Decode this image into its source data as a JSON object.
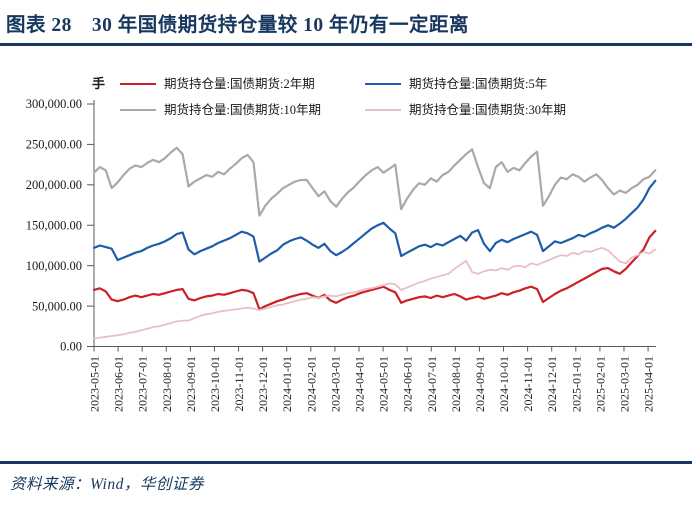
{
  "header": {
    "title": "图表 28　30 年国债期货持仓量较 10 年仍有一定距离"
  },
  "footer": {
    "source": "资料来源：Wind，华创证券"
  },
  "colors": {
    "accent_navy": "#17375e",
    "axis": "#595959",
    "text": "#1a1a1a"
  },
  "chart_data": {
    "type": "line",
    "title": "30 年国债期货持仓量较 10 年仍有一定距离",
    "unit": "手",
    "legend_position": "top",
    "grid": false,
    "ylim": [
      0,
      300000
    ],
    "y_tick_labels": [
      "0.00",
      "50,000.00",
      "100,000.00",
      "150,000.00",
      "200,000.00",
      "250,000.00",
      "300,000.00"
    ],
    "x_tick_labels": [
      "2023-05-01",
      "2023-06-01",
      "2023-07-01",
      "2023-08-01",
      "2023-09-01",
      "2023-10-01",
      "2023-11-01",
      "2023-12-01",
      "2024-01-01",
      "2024-02-01",
      "2024-03-01",
      "2024-04-01",
      "2024-05-01",
      "2024-06-01",
      "2024-07-01",
      "2024-08-01",
      "2024-09-01",
      "2024-10-01",
      "2024-11-01",
      "2024-12-01",
      "2025-01-01",
      "2025-02-01",
      "2025-03-01",
      "2025-04-01"
    ],
    "x_start": "2023-05-01",
    "x_end": "2025-04-15",
    "sampling": "approx. weekly (4 points per month), values estimated from plot",
    "values_scale": 1000,
    "values_note": "multiply each value by values_scale to get open interest in 手 (lots)",
    "series": [
      {
        "name": "期货持仓量:国债期货:2年期",
        "color": "#cc2027",
        "width": 2.2,
        "values": [
          70,
          72,
          68,
          58,
          56,
          58,
          61,
          63,
          61,
          63,
          65,
          64,
          66,
          68,
          70,
          71,
          59,
          57,
          60,
          62,
          63,
          65,
          64,
          66,
          68,
          70,
          69,
          66,
          46,
          50,
          53,
          56,
          58,
          61,
          63,
          65,
          66,
          63,
          60,
          64,
          57,
          54,
          58,
          61,
          63,
          66,
          68,
          70,
          72,
          74,
          70,
          67,
          54,
          57,
          59,
          61,
          62,
          60,
          63,
          61,
          63,
          65,
          62,
          58,
          60,
          62,
          59,
          61,
          63,
          66,
          64,
          67,
          69,
          72,
          74,
          71,
          55,
          60,
          65,
          69,
          72,
          76,
          80,
          84,
          88,
          92,
          96,
          97,
          93,
          90,
          96,
          104,
          112,
          120,
          135,
          143
        ]
      },
      {
        "name": "期货持仓量:国债期货:5年",
        "color": "#1f5ca9",
        "width": 2.2,
        "values": [
          122,
          125,
          123,
          121,
          107,
          110,
          113,
          116,
          118,
          122,
          125,
          127,
          130,
          134,
          139,
          141,
          120,
          114,
          118,
          121,
          124,
          128,
          131,
          134,
          138,
          142,
          140,
          136,
          105,
          110,
          115,
          119,
          126,
          130,
          133,
          135,
          131,
          126,
          122,
          127,
          118,
          113,
          117,
          122,
          128,
          134,
          140,
          146,
          150,
          153,
          146,
          140,
          112,
          116,
          120,
          124,
          126,
          123,
          127,
          125,
          129,
          133,
          137,
          131,
          141,
          144,
          127,
          118,
          128,
          132,
          129,
          133,
          136,
          139,
          142,
          138,
          118,
          124,
          130,
          128,
          131,
          134,
          138,
          136,
          140,
          143,
          147,
          150,
          147,
          152,
          158,
          165,
          172,
          182,
          196,
          205
        ]
      },
      {
        "name": "期货持仓量:国债期货:10年期",
        "color": "#a9a9a9",
        "width": 2.2,
        "values": [
          215,
          222,
          218,
          196,
          203,
          212,
          220,
          224,
          222,
          227,
          231,
          228,
          233,
          240,
          246,
          238,
          198,
          204,
          208,
          212,
          210,
          216,
          213,
          220,
          226,
          233,
          237,
          228,
          162,
          174,
          183,
          189,
          196,
          200,
          204,
          206,
          206,
          196,
          186,
          192,
          180,
          173,
          183,
          191,
          197,
          205,
          212,
          218,
          222,
          215,
          220,
          225,
          170,
          183,
          194,
          202,
          200,
          208,
          204,
          212,
          216,
          224,
          231,
          238,
          244,
          222,
          202,
          196,
          222,
          228,
          216,
          221,
          218,
          227,
          235,
          241,
          174,
          186,
          200,
          209,
          207,
          213,
          210,
          204,
          209,
          213,
          206,
          196,
          188,
          193,
          190,
          196,
          200,
          207,
          210,
          218
        ]
      },
      {
        "name": "期货持仓量:国债期货:30年期",
        "color": "#e9bfc4",
        "width": 1.8,
        "values": [
          10,
          11,
          12,
          13,
          14,
          15,
          17,
          18,
          20,
          22,
          24,
          25,
          27,
          29,
          31,
          32,
          32,
          35,
          38,
          40,
          41,
          43,
          44,
          45,
          46,
          47,
          48,
          47,
          45,
          47,
          49,
          51,
          52,
          54,
          56,
          58,
          59,
          61,
          60,
          62,
          63,
          62,
          64,
          66,
          67,
          69,
          71,
          72,
          74,
          76,
          78,
          77,
          70,
          73,
          76,
          79,
          81,
          84,
          86,
          88,
          90,
          96,
          101,
          106,
          92,
          90,
          93,
          95,
          94,
          97,
          95,
          99,
          100,
          98,
          103,
          101,
          104,
          107,
          110,
          113,
          112,
          116,
          114,
          118,
          117,
          120,
          122,
          119,
          112,
          105,
          103,
          110,
          113,
          117,
          115,
          120
        ]
      }
    ]
  }
}
